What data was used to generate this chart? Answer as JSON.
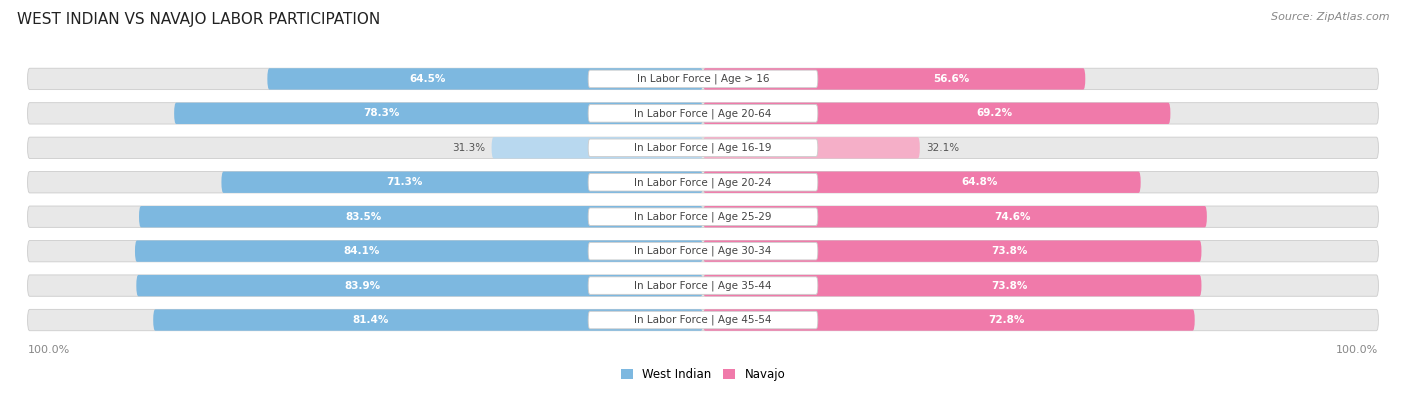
{
  "title": "WEST INDIAN VS NAVAJO LABOR PARTICIPATION",
  "source": "Source: ZipAtlas.com",
  "categories": [
    "In Labor Force | Age > 16",
    "In Labor Force | Age 20-64",
    "In Labor Force | Age 16-19",
    "In Labor Force | Age 20-24",
    "In Labor Force | Age 25-29",
    "In Labor Force | Age 30-34",
    "In Labor Force | Age 35-44",
    "In Labor Force | Age 45-54"
  ],
  "west_indian": [
    64.5,
    78.3,
    31.3,
    71.3,
    83.5,
    84.1,
    83.9,
    81.4
  ],
  "navajo": [
    56.6,
    69.2,
    32.1,
    64.8,
    74.6,
    73.8,
    73.8,
    72.8
  ],
  "west_indian_color": "#7db8e0",
  "west_indian_light_color": "#b8d8ef",
  "navajo_color": "#f07aaa",
  "navajo_light_color": "#f5afc8",
  "row_bg_color": "#e8e8e8",
  "label_color": "#444444",
  "title_color": "#222222",
  "axis_label_color": "#888888",
  "max_val": 100.0,
  "background_color": "#ffffff",
  "label_fontsize": 7.5,
  "value_fontsize": 7.5,
  "title_fontsize": 11,
  "source_fontsize": 8
}
